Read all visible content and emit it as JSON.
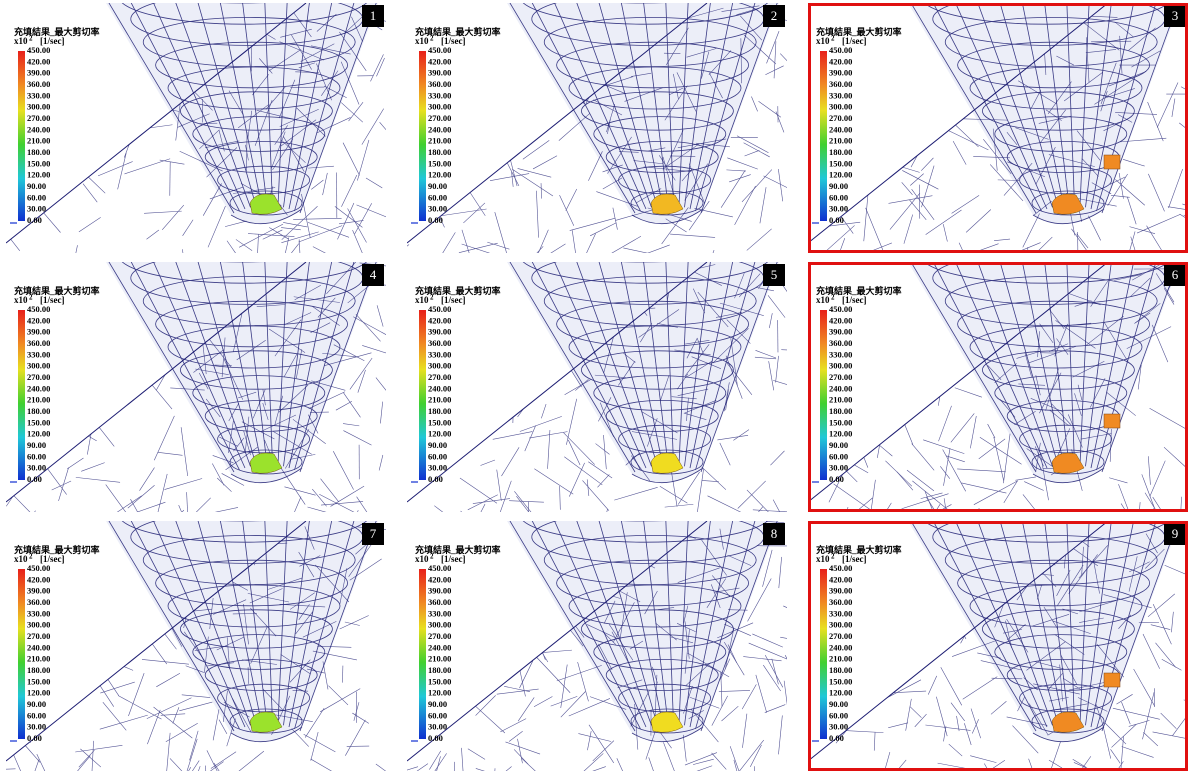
{
  "legend": {
    "title": "充填結果_最大剪切率",
    "unit_base": "x10",
    "unit_exponent": "2",
    "unit": "[1/sec]",
    "labels": [
      "450.00",
      "420.00",
      "390.00",
      "360.00",
      "330.00",
      "300.00",
      "270.00",
      "240.00",
      "210.00",
      "180.00",
      "150.00",
      "120.00",
      "90.00",
      "60.00",
      "30.00",
      "0.00"
    ]
  },
  "panels": [
    {
      "number": "1",
      "highlighted": false,
      "blob_color": "#9be22c"
    },
    {
      "number": "2",
      "highlighted": false,
      "blob_color": "#f2b822"
    },
    {
      "number": "3",
      "highlighted": true,
      "blob_color": "#f08a22"
    },
    {
      "number": "4",
      "highlighted": false,
      "blob_color": "#9be22c"
    },
    {
      "number": "5",
      "highlighted": false,
      "blob_color": "#f0dc20"
    },
    {
      "number": "6",
      "highlighted": true,
      "blob_color": "#f08a22"
    },
    {
      "number": "7",
      "highlighted": false,
      "blob_color": "#9be22c"
    },
    {
      "number": "8",
      "highlighted": false,
      "blob_color": "#f0dc20"
    },
    {
      "number": "9",
      "highlighted": true,
      "blob_color": "#f08a22"
    }
  ]
}
